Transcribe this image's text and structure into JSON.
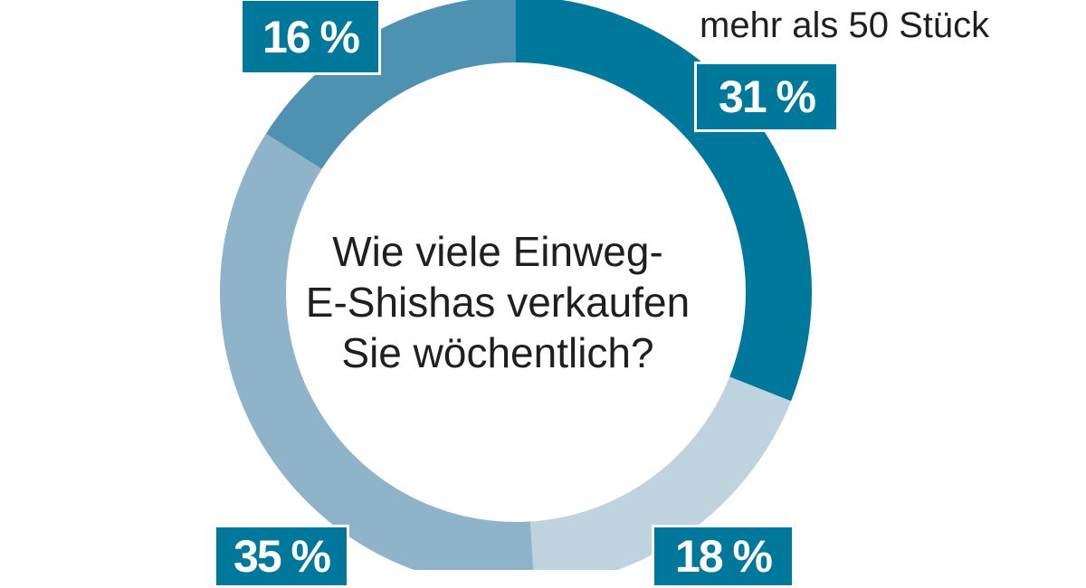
{
  "chart_data": {
    "type": "pie",
    "title": "Wie viele Einweg-E-Shishas verkaufen Sie wöchentlich?",
    "title_lines": [
      "Wie viele Einweg-",
      "E-Shishas verkaufen",
      "Sie wöchentlich?"
    ],
    "slices": [
      {
        "label": "mehr als 50 Stück",
        "value": 31,
        "display": "31 %",
        "color": "#00789c"
      },
      {
        "label": "",
        "value": 18,
        "display": "18 %",
        "color": "#bfd3df"
      },
      {
        "label": "",
        "value": 35,
        "display": "35 %",
        "color": "#8fb3c9"
      },
      {
        "label": "",
        "value": 16,
        "display": "16 %",
        "color": "#4f91b1"
      }
    ],
    "badge_color": "#00789c",
    "donut": true
  }
}
